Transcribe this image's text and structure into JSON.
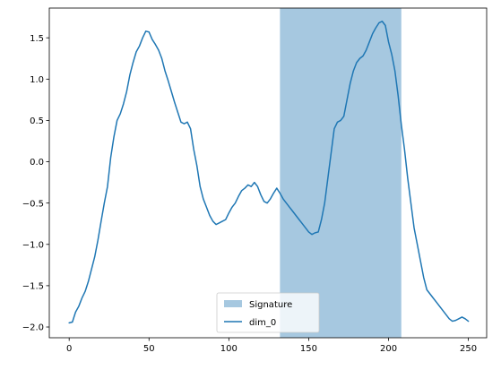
{
  "chart_data": {
    "type": "line",
    "title": "",
    "xlabel": "",
    "ylabel": "",
    "xlim": [
      -12.45,
      261.45
    ],
    "ylim": [
      -2.13,
      1.86
    ],
    "xticks": [
      0,
      50,
      100,
      150,
      200,
      250
    ],
    "xtick_labels": [
      "0",
      "50",
      "100",
      "150",
      "200",
      "250"
    ],
    "yticks": [
      -2.0,
      -1.5,
      -1.0,
      -0.5,
      0.0,
      0.5,
      1.0,
      1.5
    ],
    "ytick_labels": [
      "−2.0",
      "−1.5",
      "−1.0",
      "−0.5",
      "0.0",
      "0.5",
      "1.0",
      "1.5"
    ],
    "grid": false,
    "legend_position": "lower-center",
    "highlight_span": {
      "name": "Signature",
      "x_start": 132,
      "x_end": 208,
      "color": "#a6c8e0"
    },
    "series": [
      {
        "name": "dim_0",
        "color": "#1f77b4",
        "x": [
          0,
          2,
          4,
          6,
          8,
          10,
          12,
          14,
          16,
          18,
          20,
          22,
          24,
          26,
          28,
          30,
          32,
          34,
          36,
          38,
          40,
          42,
          44,
          46,
          48,
          50,
          52,
          54,
          56,
          58,
          60,
          62,
          64,
          66,
          68,
          70,
          72,
          74,
          76,
          78,
          80,
          82,
          84,
          86,
          88,
          90,
          92,
          94,
          96,
          98,
          100,
          102,
          104,
          106,
          108,
          110,
          112,
          114,
          116,
          118,
          120,
          122,
          124,
          126,
          128,
          130,
          132,
          134,
          136,
          138,
          140,
          142,
          144,
          146,
          148,
          150,
          152,
          154,
          156,
          158,
          160,
          162,
          164,
          166,
          168,
          170,
          172,
          174,
          176,
          178,
          180,
          182,
          184,
          186,
          188,
          190,
          192,
          194,
          196,
          198,
          200,
          202,
          204,
          206,
          208,
          210,
          212,
          214,
          216,
          218,
          220,
          222,
          224,
          226,
          228,
          230,
          232,
          234,
          236,
          238,
          240,
          242,
          244,
          246,
          248,
          250
        ],
        "values": [
          -1.95,
          -1.94,
          -1.82,
          -1.75,
          -1.65,
          -1.57,
          -1.45,
          -1.3,
          -1.15,
          -0.95,
          -0.72,
          -0.5,
          -0.3,
          0.05,
          0.3,
          0.5,
          0.58,
          0.7,
          0.85,
          1.05,
          1.2,
          1.33,
          1.4,
          1.5,
          1.58,
          1.57,
          1.48,
          1.42,
          1.35,
          1.25,
          1.1,
          0.98,
          0.85,
          0.72,
          0.6,
          0.48,
          0.46,
          0.48,
          0.4,
          0.15,
          -0.05,
          -0.3,
          -0.45,
          -0.55,
          -0.65,
          -0.72,
          -0.76,
          -0.74,
          -0.72,
          -0.7,
          -0.62,
          -0.55,
          -0.5,
          -0.42,
          -0.35,
          -0.32,
          -0.28,
          -0.3,
          -0.25,
          -0.3,
          -0.4,
          -0.48,
          -0.5,
          -0.45,
          -0.38,
          -0.32,
          -0.38,
          -0.45,
          -0.5,
          -0.55,
          -0.6,
          -0.65,
          -0.7,
          -0.75,
          -0.8,
          -0.85,
          -0.88,
          -0.86,
          -0.85,
          -0.7,
          -0.5,
          -0.2,
          0.1,
          0.4,
          0.48,
          0.5,
          0.55,
          0.75,
          0.95,
          1.1,
          1.2,
          1.25,
          1.28,
          1.35,
          1.45,
          1.55,
          1.62,
          1.68,
          1.7,
          1.65,
          1.45,
          1.3,
          1.1,
          0.8,
          0.45,
          0.15,
          -0.2,
          -0.5,
          -0.8,
          -1.0,
          -1.2,
          -1.4,
          -1.55,
          -1.6,
          -1.65,
          -1.7,
          -1.75,
          -1.8,
          -1.85,
          -1.9,
          -1.93,
          -1.92,
          -1.9,
          -1.88,
          -1.9,
          -1.93
        ]
      }
    ]
  }
}
